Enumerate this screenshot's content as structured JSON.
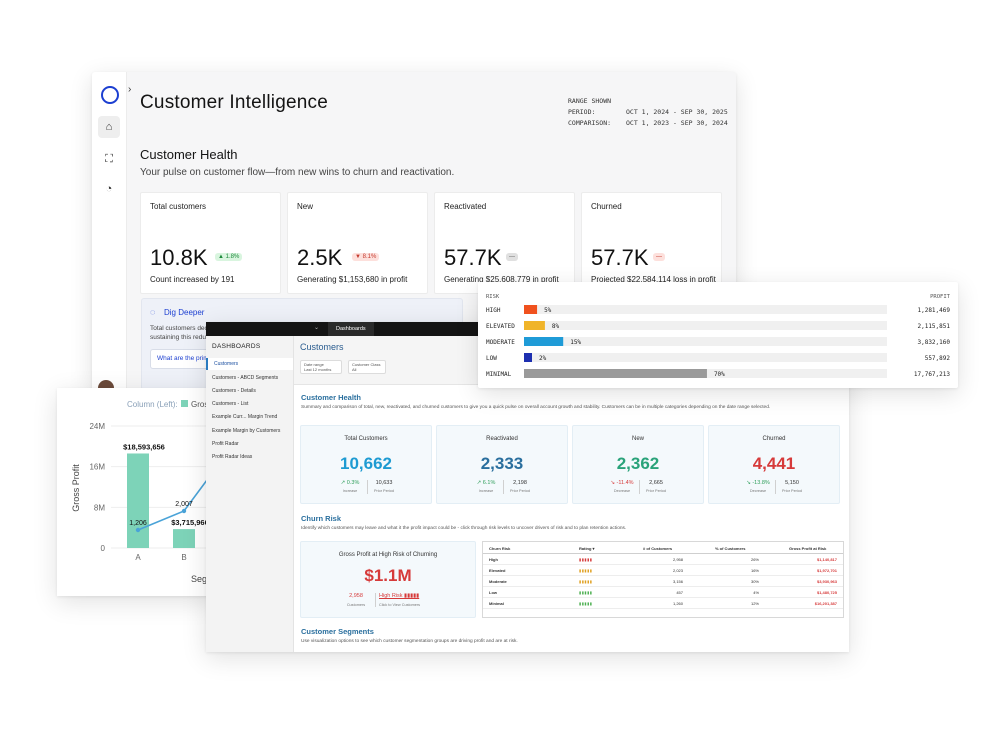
{
  "main_window": {
    "title": "Customer Intelligence",
    "range": {
      "heading": "RANGE SHOWN",
      "period_label": "PERIOD:",
      "period_value": "OCT 1, 2024 - SEP 30, 2025",
      "comparison_label": "COMPARISON:",
      "comparison_value": "OCT 1, 2023 - SEP 30, 2024"
    },
    "section_title": "Customer Health",
    "section_subtitle": "Your pulse on customer flow—from new wins to churn and reactivation.",
    "kpis": [
      {
        "label": "Total customers",
        "value": "10.8K",
        "badge": "▲ 1.8%",
        "desc": "Count increased by 191"
      },
      {
        "label": "New",
        "value": "2.5K",
        "badge": "▼ 8.1%",
        "desc": "Generating $1,153,680 in profit"
      },
      {
        "label": "Reactivated",
        "value": "57.7K",
        "badge": "—",
        "desc": "Generating $25,608,779 in profit"
      },
      {
        "label": "Churned",
        "value": "57.7K",
        "badge": "—",
        "desc": "Projected $22,584,114 loss in profit"
      }
    ],
    "dig_deeper": {
      "title": "Dig Deeper",
      "text_line1": "Total customers decr",
      "text_line2": "sustaining this reduc",
      "question": "What are the prim"
    }
  },
  "chart_data": {
    "type": "bar",
    "title": "",
    "legend_label": "Column (Left):",
    "legend_item": "Gros",
    "categories": [
      "A",
      "B"
    ],
    "values": [
      18593656,
      3715966
    ],
    "value_labels": [
      "$18,593,656",
      "$3,715,966"
    ],
    "line_series": {
      "values": [
        1206,
        2007
      ]
    },
    "ylabel": "Gross Profit",
    "xlabel": "Seg",
    "yticks": [
      "0",
      "8M",
      "16M",
      "24M"
    ],
    "ylim": [
      0,
      24000000
    ],
    "bar_color": "#7dd3b8",
    "line_color": "#4aa3d8"
  },
  "risk_panel": {
    "col_risk": "RISK",
    "col_profit": "PROFIT",
    "rows": [
      {
        "level": "HIGH",
        "pct": 5,
        "pct_label": "5%",
        "color": "#f0511e",
        "profit": "1,281,469"
      },
      {
        "level": "ELEVATED",
        "pct": 8,
        "pct_label": "8%",
        "color": "#f0b429",
        "profit": "2,115,851"
      },
      {
        "level": "MODERATE",
        "pct": 15,
        "pct_label": "15%",
        "color": "#1f9bd7",
        "profit": "3,832,160"
      },
      {
        "level": "LOW",
        "pct": 2,
        "pct_label": "2%",
        "color": "#1d2fb0",
        "profit": "557,892"
      },
      {
        "level": "MINIMAL",
        "pct": 70,
        "pct_label": "70%",
        "color": "#9a9a9a",
        "profit": "17,767,213"
      }
    ]
  },
  "dashboard": {
    "top_tab": "Dashboards",
    "sidebar_heading": "DASHBOARDS",
    "sidebar_items": [
      "Customers",
      "Customers - ABCD Segments",
      "Customers - Details",
      "Customers - List",
      "Example Curr... Margin Trend",
      "Example Margin by Customers",
      "Profit Radar",
      "Profit Radar Ideas"
    ],
    "title": "Customers",
    "filters": [
      {
        "label": "Date range",
        "value": "Last 12 months"
      },
      {
        "label": "Customer Class",
        "value": "All"
      }
    ],
    "health": {
      "title": "Customer Health",
      "desc": "Summary and comparison of total, new, reactivated, and churned customers to give you a quick pulse on overall account growth and stability. Customers can be in multiple categories depending on the date range selected.",
      "cards": [
        {
          "label": "Total Customers",
          "value": "10,662",
          "color": "#1e9bd2",
          "change": "↗ 0.3%",
          "change_color": "#2e9e5a",
          "change_label": "Increase",
          "prior": "10,633",
          "prior_label": "Prior Period"
        },
        {
          "label": "Reactivated",
          "value": "2,333",
          "color": "#2a6f9e",
          "change": "↗ 6.1%",
          "change_color": "#2e9e5a",
          "change_label": "Increase",
          "prior": "2,198",
          "prior_label": "Prior Period"
        },
        {
          "label": "New",
          "value": "2,362",
          "color": "#2aa37a",
          "change": "↘ -11.4%",
          "change_color": "#d63a3a",
          "change_label": "Decrease",
          "prior": "2,665",
          "prior_label": "Prior Period"
        },
        {
          "label": "Churned",
          "value": "4,441",
          "color": "#d63a3a",
          "change": "↘ -13.8%",
          "change_color": "#2e9e5a",
          "change_label": "Decrease",
          "prior": "5,150",
          "prior_label": "Prior Period"
        }
      ]
    },
    "churn": {
      "title": "Churn Risk",
      "desc": "Identify which customers may leave and what it the profit impact could be - click through risk levels to uncover drivers of risk and to plan retention actions.",
      "gp_label": "Gross Profit at High Risk of Churning",
      "gp_value": "$1.1M",
      "gp_count": "2,958",
      "gp_count_label": "Customers",
      "gp_risk": "High Risk ▮▮▮▮▮",
      "gp_risk_label": "Click to View Customers",
      "table_headers": [
        "Churn Risk",
        "Rating ▾",
        "# of Customers",
        "% of Customers",
        "Gross Profit at Risk"
      ],
      "table_rows": [
        {
          "risk": "High",
          "customers": "2,958",
          "pct": "26%",
          "profit": "$1,140,817"
        },
        {
          "risk": "Elevated",
          "customers": "2,023",
          "pct": "16%",
          "profit": "$1,972,701"
        },
        {
          "risk": "Moderate",
          "customers": "3,156",
          "pct": "30%",
          "profit": "$3,930,963"
        },
        {
          "risk": "Low",
          "customers": "457",
          "pct": "4%",
          "profit": "$1,480,725"
        },
        {
          "risk": "Minimal",
          "customers": "1,260",
          "pct": "12%",
          "profit": "$16,201,387"
        }
      ]
    },
    "segments": {
      "title": "Customer Segments",
      "desc": "Use visualization options to see which customer segmentation groups are driving profit and are at risk."
    }
  }
}
